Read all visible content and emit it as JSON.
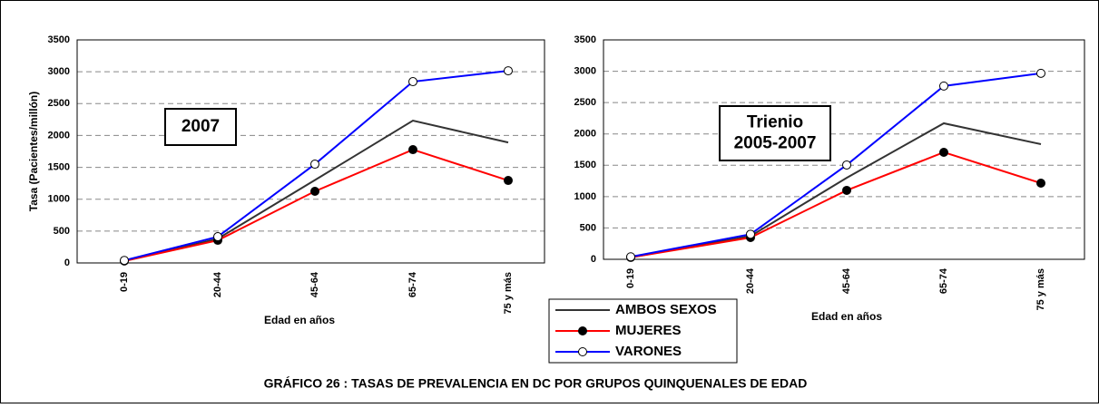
{
  "caption": "GRÁFICO 26 :  TASAS DE PREVALENCIA  EN  DC  POR GRUPOS QUINQUENALES DE EDAD",
  "chart_data": [
    {
      "type": "line",
      "annotation": [
        "2007"
      ],
      "ylabel": "Tasa (Pacientes/millón)",
      "xlabel": "Edad en años",
      "categories": [
        "0-19",
        "20-44",
        "45-64",
        "65-74",
        "75 y más"
      ],
      "ylim": [
        0,
        3500
      ],
      "yticks": [
        0,
        500,
        1000,
        1500,
        2000,
        2500,
        3000,
        3500
      ],
      "grid": true,
      "series": [
        {
          "name": "AMBOS SEXOS",
          "color": "#333333",
          "marker": "none",
          "values": [
            30,
            380,
            1300,
            2233,
            1890
          ]
        },
        {
          "name": "MUJERES",
          "color": "#ff0000",
          "marker": "filled",
          "values": [
            30,
            355,
            1124,
            1778,
            1294
          ]
        },
        {
          "name": "VARONES",
          "color": "#0000ff",
          "marker": "open",
          "values": [
            40,
            412,
            1550,
            2845,
            3015
          ]
        }
      ]
    },
    {
      "type": "line",
      "annotation": [
        "Trienio",
        "2005-2007"
      ],
      "xlabel": "Edad en años",
      "categories": [
        "0-19",
        "20-44",
        "45-64",
        "65-74",
        "75 y más"
      ],
      "ylim": [
        0,
        3500
      ],
      "yticks": [
        0,
        500,
        1000,
        1500,
        2000,
        2500,
        3000,
        3500
      ],
      "grid": true,
      "series": [
        {
          "color": "#333333",
          "marker": "none",
          "values": [
            30,
            370,
            1300,
            2170,
            1837
          ]
        },
        {
          "color": "#ff0000",
          "marker": "filled",
          "values": [
            30,
            347,
            1100,
            1707,
            1215
          ]
        },
        {
          "color": "#0000ff",
          "marker": "open",
          "values": [
            40,
            400,
            1505,
            2764,
            2967
          ]
        }
      ]
    }
  ]
}
